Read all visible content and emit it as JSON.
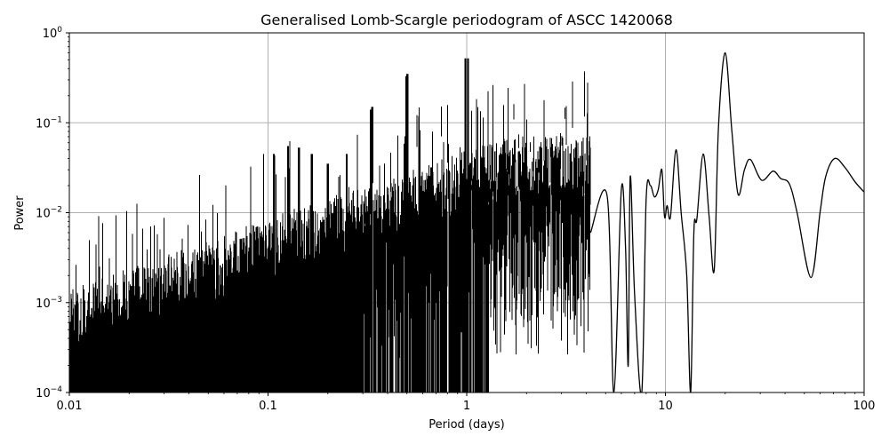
{
  "chart_data": {
    "type": "line",
    "title": "Generalised Lomb-Scargle periodogram of ASCC 1420068",
    "xlabel": "Period (days)",
    "ylabel": "Power",
    "xscale": "log",
    "yscale": "log",
    "xlim": [
      0.01,
      100
    ],
    "ylim": [
      0.0001,
      1
    ],
    "grid": true,
    "legend": null,
    "x_ticks": [
      {
        "value": 0.01,
        "label": "0.01"
      },
      {
        "value": 0.1,
        "label": "0.1"
      },
      {
        "value": 1,
        "label": "1"
      },
      {
        "value": 10,
        "label": "10"
      },
      {
        "value": 100,
        "label": "100"
      }
    ],
    "y_ticks": [
      {
        "value": 0.0001,
        "base": "10",
        "exp": "−4"
      },
      {
        "value": 0.001,
        "base": "10",
        "exp": "−3"
      },
      {
        "value": 0.01,
        "base": "10",
        "exp": "−2"
      },
      {
        "value": 0.1,
        "base": "10",
        "exp": "−1"
      },
      {
        "value": 1,
        "base": "10",
        "exp": "0"
      }
    ],
    "line_color": "#000000",
    "grid_color": "#b0b0b0",
    "notable_peaks": [
      {
        "period": 0.107,
        "power": 0.045
      },
      {
        "period": 0.126,
        "power": 0.055
      },
      {
        "period": 0.143,
        "power": 0.053
      },
      {
        "period": 0.166,
        "power": 0.045
      },
      {
        "period": 0.2,
        "power": 0.035
      },
      {
        "period": 0.249,
        "power": 0.045
      },
      {
        "period": 0.33,
        "power": 0.14
      },
      {
        "period": 0.335,
        "power": 0.15
      },
      {
        "period": 0.497,
        "power": 0.33
      },
      {
        "period": 0.503,
        "power": 0.35
      },
      {
        "period": 0.985,
        "power": 0.52
      },
      {
        "period": 1.015,
        "power": 0.52
      },
      {
        "period": 1.98,
        "power": 0.033
      },
      {
        "period": 2.75,
        "power": 0.027
      },
      {
        "period": 5.1,
        "power": 0.015
      },
      {
        "period": 6.0,
        "power": 0.018
      },
      {
        "period": 6.65,
        "power": 0.025
      },
      {
        "period": 9.6,
        "power": 0.03
      },
      {
        "period": 11.3,
        "power": 0.05
      },
      {
        "period": 15.5,
        "power": 0.045
      },
      {
        "period": 20.0,
        "power": 0.6
      },
      {
        "period": 26.8,
        "power": 0.039
      },
      {
        "period": 34.8,
        "power": 0.029
      },
      {
        "period": 71.0,
        "power": 0.04
      }
    ],
    "notable_troughs": [
      {
        "period": 13.4,
        "power": 0.0001
      },
      {
        "period": 17.6,
        "power": 0.0023
      },
      {
        "period": 23.2,
        "power": 0.016
      },
      {
        "period": 30.5,
        "power": 0.023
      },
      {
        "period": 54.0,
        "power": 0.0019
      },
      {
        "period": 100,
        "power": 0.017
      }
    ],
    "noise_floor_description": "Dense forest of aliased peaks from 0.01 to ~4 days; envelope rises from ~7e-4 near 0.01 d to ~3e-2 near 1 d"
  }
}
